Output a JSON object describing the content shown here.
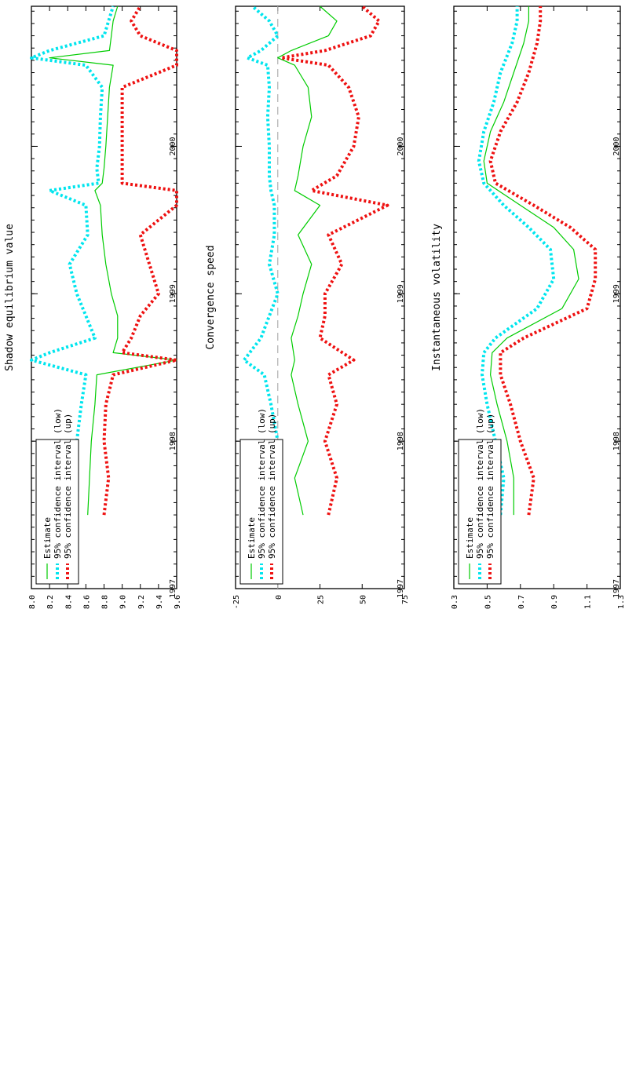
{
  "colors": {
    "estimate": "#00cc00",
    "ci_low": "#00e5ee",
    "ci_up": "#ee1111",
    "zero_line": "#b0b0b0"
  },
  "chart_data": [
    {
      "type": "line",
      "title": "Shadow equilibrium value",
      "xlabel": "",
      "ylabel": "",
      "x_tick_labels": [
        "1997",
        "1998",
        "1999",
        "2000"
      ],
      "x_range": [
        1997.0,
        2000.95
      ],
      "y_tick_labels": [
        "8.0",
        "8.2",
        "8.4",
        "8.6",
        "8.8",
        "9.0",
        "9.2",
        "9.4",
        "9.6"
      ],
      "ylim": [
        8.0,
        9.6
      ],
      "legend": [
        "Estimate",
        "95% confidence interval (low)",
        "95% confidence interval (up)"
      ],
      "legend_position": "top-left",
      "x": [
        1997.5,
        1997.75,
        1998.0,
        1998.25,
        1998.45,
        1998.55,
        1998.6,
        1998.7,
        1998.85,
        1999.0,
        1999.2,
        1999.4,
        1999.6,
        1999.7,
        1999.75,
        1999.85,
        2000.0,
        2000.2,
        2000.4,
        2000.55,
        2000.6,
        2000.65,
        2000.75,
        2000.85,
        2000.95
      ],
      "series": [
        {
          "name": "Estimate",
          "values": [
            8.62,
            8.64,
            8.66,
            8.7,
            8.72,
            9.6,
            8.9,
            8.95,
            8.95,
            8.88,
            8.82,
            8.78,
            8.76,
            8.7,
            8.78,
            8.8,
            8.82,
            8.84,
            8.86,
            8.9,
            8.2,
            8.86,
            8.88,
            8.9,
            8.95
          ]
        },
        {
          "name": "95% confidence interval (low)",
          "values": [
            8.45,
            8.4,
            8.5,
            8.55,
            8.6,
            8.0,
            8.2,
            8.7,
            8.6,
            8.5,
            8.42,
            8.62,
            8.6,
            8.2,
            8.74,
            8.72,
            8.75,
            8.76,
            8.78,
            8.6,
            8.0,
            8.2,
            8.8,
            8.85,
            8.9
          ]
        },
        {
          "name": "95% confidence interval (up)",
          "values": [
            8.8,
            8.85,
            8.8,
            8.82,
            8.9,
            9.6,
            9.0,
            9.1,
            9.2,
            9.4,
            9.3,
            9.2,
            9.6,
            9.6,
            9.0,
            9.0,
            9.0,
            9.0,
            9.0,
            9.6,
            9.6,
            9.6,
            9.2,
            9.1,
            9.2
          ]
        }
      ]
    },
    {
      "type": "line",
      "title": "Convergence speed",
      "xlabel": "",
      "ylabel": "",
      "x_tick_labels": [
        "1997",
        "1998",
        "1999",
        "2000"
      ],
      "x_range": [
        1997.0,
        2000.95
      ],
      "y_tick_labels": [
        "-25",
        "0",
        "25",
        "50",
        "75"
      ],
      "ylim": [
        -25,
        75
      ],
      "legend": [
        "Estimate",
        "95% confidence interval (low)",
        "95% confidence interval (up)"
      ],
      "legend_position": "top-left",
      "x": [
        1997.5,
        1997.75,
        1998.0,
        1998.25,
        1998.45,
        1998.55,
        1998.7,
        1998.85,
        1999.0,
        1999.2,
        1999.4,
        1999.6,
        1999.7,
        1999.8,
        2000.0,
        2000.2,
        2000.4,
        2000.55,
        2000.6,
        2000.65,
        2000.75,
        2000.85,
        2000.95
      ],
      "series": [
        {
          "name": "Estimate",
          "values": [
            15,
            10,
            18,
            12,
            8,
            10,
            8,
            12,
            15,
            20,
            12,
            25,
            10,
            12,
            15,
            20,
            18,
            10,
            0,
            8,
            30,
            35,
            25
          ]
        },
        {
          "name": "95% confidence interval (low)",
          "values": [
            2,
            -5,
            0,
            -4,
            -8,
            -20,
            -10,
            -5,
            0,
            -5,
            -2,
            -2,
            -4,
            -5,
            -5,
            -6,
            -5,
            -6,
            -18,
            -10,
            0,
            -5,
            -15
          ]
        },
        {
          "name": "95% confidence interval (up)",
          "values": [
            30,
            35,
            28,
            35,
            30,
            45,
            25,
            28,
            28,
            38,
            30,
            65,
            20,
            35,
            45,
            48,
            42,
            30,
            2,
            28,
            55,
            60,
            50
          ]
        }
      ]
    },
    {
      "type": "line",
      "title": "Instantaneous volatility",
      "xlabel": "",
      "ylabel": "",
      "x_tick_labels": [
        "1997",
        "1998",
        "1999",
        "2000"
      ],
      "x_range": [
        1997.0,
        2000.95
      ],
      "y_tick_labels": [
        "0.3",
        "0.5",
        "0.7",
        "0.9",
        "1.1",
        "1.3"
      ],
      "ylim": [
        0.3,
        1.3
      ],
      "legend": [
        "Estimate",
        "95% confidence interval (low)",
        "95% confidence interval (up)"
      ],
      "legend_position": "top-left",
      "x": [
        1997.5,
        1997.75,
        1998.0,
        1998.25,
        1998.45,
        1998.6,
        1998.7,
        1998.9,
        1999.1,
        1999.3,
        1999.45,
        1999.6,
        1999.75,
        1999.9,
        2000.1,
        2000.3,
        2000.5,
        2000.7,
        2000.85,
        2000.95
      ],
      "series": [
        {
          "name": "Estimate",
          "values": [
            0.66,
            0.66,
            0.62,
            0.56,
            0.52,
            0.53,
            0.62,
            0.95,
            1.05,
            1.02,
            0.9,
            0.7,
            0.5,
            0.48,
            0.52,
            0.6,
            0.66,
            0.72,
            0.75,
            0.75
          ]
        },
        {
          "name": "95% confidence interval (low)",
          "values": [
            0.58,
            0.6,
            0.55,
            0.5,
            0.47,
            0.48,
            0.55,
            0.8,
            0.9,
            0.88,
            0.75,
            0.6,
            0.48,
            0.45,
            0.48,
            0.54,
            0.58,
            0.65,
            0.68,
            0.68
          ]
        },
        {
          "name": "95% confidence interval (up)",
          "values": [
            0.75,
            0.78,
            0.7,
            0.64,
            0.58,
            0.58,
            0.72,
            1.1,
            1.15,
            1.15,
            1.0,
            0.78,
            0.55,
            0.52,
            0.58,
            0.68,
            0.75,
            0.8,
            0.82,
            0.82
          ]
        }
      ]
    }
  ]
}
